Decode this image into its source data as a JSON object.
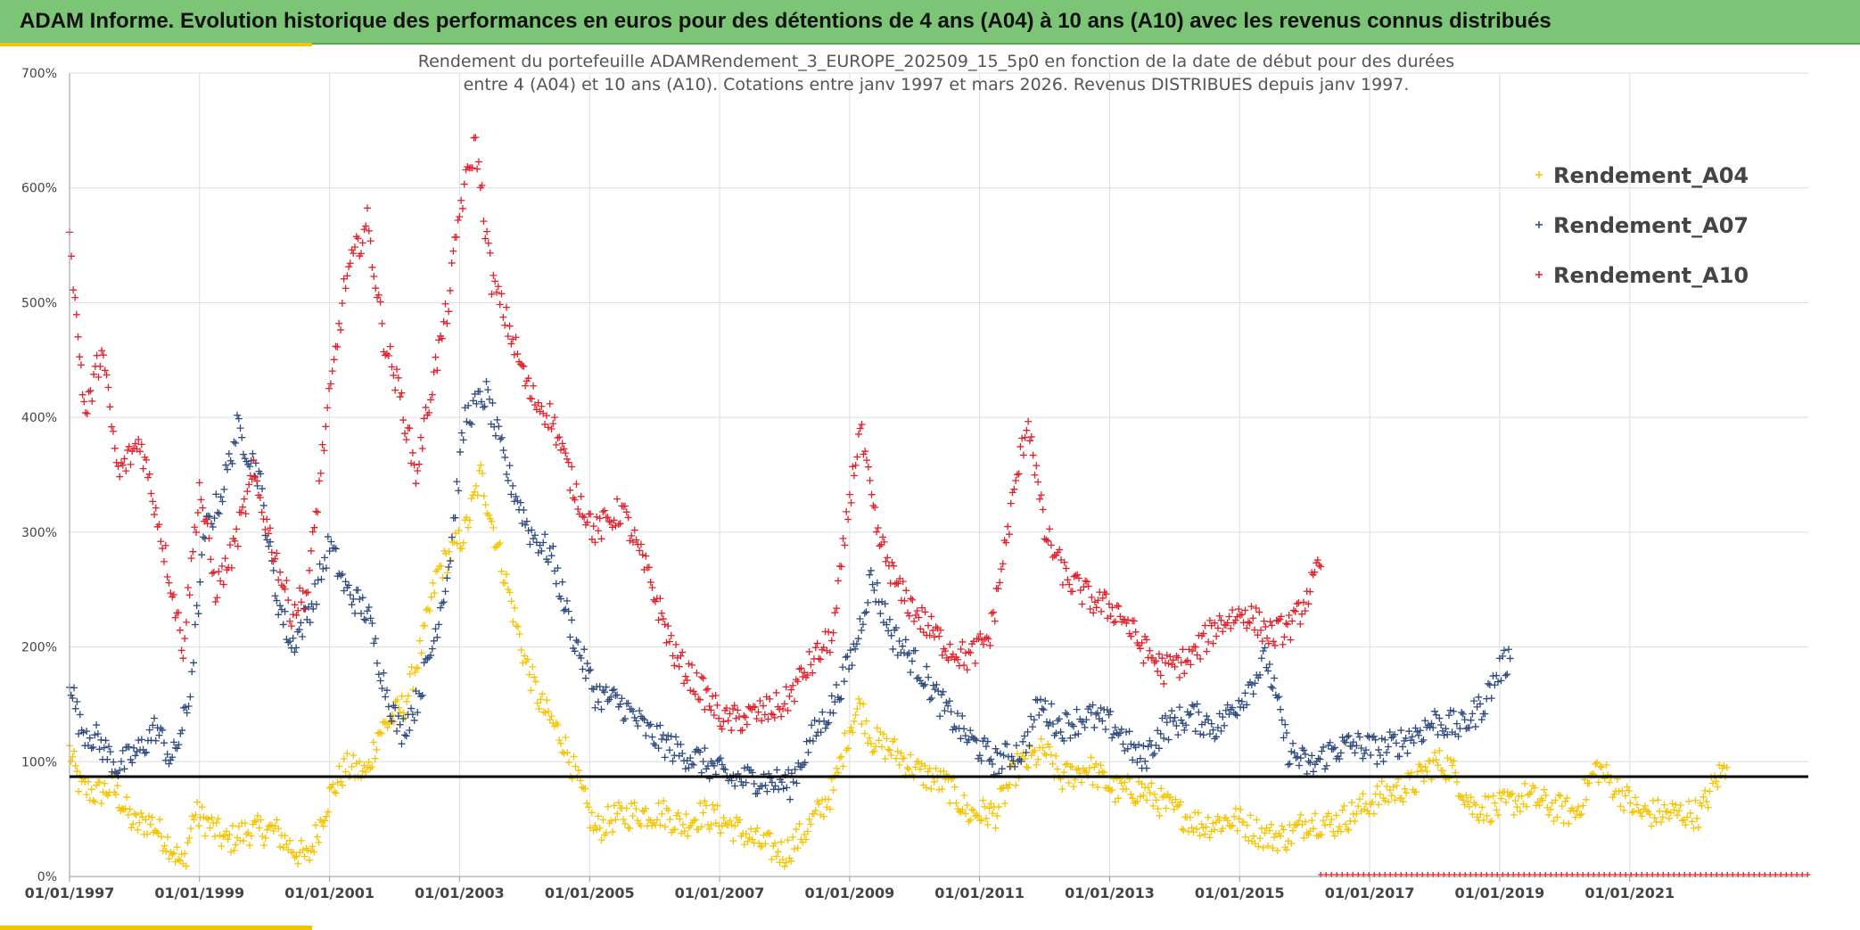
{
  "banner": {
    "title": "ADAM Informe. Evolution historique des performances en euros pour des détentions de 4 ans (A04) à 10 ans (A10) avec les revenus connus distribués"
  },
  "colors": {
    "banner": "#7cc576",
    "accent": "#f5c400",
    "a04": "#f5c400",
    "a07": "#2e4a7d",
    "a10": "#e0202a",
    "reference_line": "#000000"
  },
  "chart_data": {
    "type": "scatter",
    "title_lines": [
      "Rendement du portefeuille ADAMRendement_3_EUROPE_202509_15_5p0  en fonction de la date de début pour des durées",
      "entre 4 (A04) et 10 ans (A10). Cotations entre janv 1997 et mars 2026. Revenus DISTRIBUES depuis janv 1997."
    ],
    "x_type": "date",
    "xlim": [
      "1997-01-01",
      "2023-10-01"
    ],
    "x_ticks": [
      "01/01/1997",
      "01/01/1999",
      "01/01/2001",
      "01/01/2003",
      "01/01/2005",
      "01/01/2007",
      "01/01/2009",
      "01/01/2011",
      "01/01/2013",
      "01/01/2015",
      "01/01/2017",
      "01/01/2019",
      "01/01/2021"
    ],
    "ylim": [
      0,
      700
    ],
    "y_ticks": [
      "0%",
      "100%",
      "200%",
      "300%",
      "400%",
      "500%",
      "600%",
      "700%"
    ],
    "y_unit": "%",
    "grid": true,
    "legend_position": "top-right",
    "reference_line_y": 87,
    "marker": "+",
    "series": [
      {
        "name": "Rendement_A04",
        "color": "#f5c400",
        "points": [
          [
            "1997-01-01",
            110
          ],
          [
            "1997-03-01",
            78
          ],
          [
            "1997-06-01",
            72
          ],
          [
            "1997-09-01",
            78
          ],
          [
            "1998-01-01",
            45
          ],
          [
            "1998-04-01",
            48
          ],
          [
            "1998-08-01",
            25
          ],
          [
            "1998-10-01",
            8
          ],
          [
            "1998-12-01",
            55
          ],
          [
            "1999-03-01",
            45
          ],
          [
            "1999-06-01",
            30
          ],
          [
            "1999-10-01",
            40
          ],
          [
            "2000-03-01",
            40
          ],
          [
            "2000-06-01",
            25
          ],
          [
            "2000-09-01",
            15
          ],
          [
            "2001-01-01",
            70
          ],
          [
            "2001-04-01",
            95
          ],
          [
            "2001-08-01",
            90
          ],
          [
            "2001-10-01",
            125
          ],
          [
            "2002-03-01",
            150
          ],
          [
            "2002-06-01",
            200
          ],
          [
            "2002-09-01",
            265
          ],
          [
            "2002-12-01",
            285
          ],
          [
            "2003-02-01",
            300
          ],
          [
            "2003-05-01",
            350
          ],
          [
            "2003-07-01",
            310
          ],
          [
            "2003-10-01",
            250
          ],
          [
            "2004-01-01",
            190
          ],
          [
            "2004-04-01",
            150
          ],
          [
            "2004-08-01",
            120
          ],
          [
            "2004-11-01",
            80
          ],
          [
            "2005-02-01",
            40
          ],
          [
            "2005-05-01",
            50
          ],
          [
            "2005-09-01",
            55
          ],
          [
            "2006-03-01",
            55
          ],
          [
            "2006-06-01",
            45
          ],
          [
            "2006-10-01",
            55
          ],
          [
            "2007-03-01",
            45
          ],
          [
            "2007-08-01",
            30
          ],
          [
            "2008-01-01",
            20
          ],
          [
            "2008-05-01",
            40
          ],
          [
            "2008-10-01",
            75
          ],
          [
            "2009-01-01",
            130
          ],
          [
            "2009-03-01",
            150
          ],
          [
            "2009-05-01",
            120
          ],
          [
            "2009-09-01",
            110
          ],
          [
            "2010-02-01",
            90
          ],
          [
            "2010-07-01",
            80
          ],
          [
            "2010-11-01",
            55
          ],
          [
            "2011-04-01",
            55
          ],
          [
            "2011-08-01",
            95
          ],
          [
            "2011-10-01",
            100
          ],
          [
            "2012-01-01",
            110
          ],
          [
            "2012-04-01",
            85
          ],
          [
            "2012-09-01",
            95
          ],
          [
            "2013-02-01",
            75
          ],
          [
            "2013-07-01",
            75
          ],
          [
            "2013-12-01",
            60
          ],
          [
            "2014-06-01",
            45
          ],
          [
            "2014-12-01",
            50
          ],
          [
            "2015-06-01",
            35
          ],
          [
            "2015-10-01",
            35
          ],
          [
            "2016-02-01",
            50
          ],
          [
            "2016-06-01",
            45
          ],
          [
            "2016-10-01",
            55
          ],
          [
            "2017-03-01",
            70
          ],
          [
            "2017-09-01",
            80
          ],
          [
            "2018-01-01",
            100
          ],
          [
            "2018-04-01",
            95
          ],
          [
            "2018-08-01",
            60
          ],
          [
            "2019-01-01",
            60
          ],
          [
            "2019-06-01",
            70
          ],
          [
            "2019-11-01",
            60
          ],
          [
            "2020-03-01",
            55
          ],
          [
            "2020-07-01",
            95
          ],
          [
            "2020-11-01",
            75
          ],
          [
            "2021-03-01",
            55
          ],
          [
            "2021-08-01",
            55
          ],
          [
            "2022-02-01",
            55
          ],
          [
            "2022-05-01",
            85
          ],
          [
            "2022-07-01",
            95
          ]
        ]
      },
      {
        "name": "Rendement_A07",
        "color": "#2e4a7d",
        "points": [
          [
            "1997-01-01",
            175
          ],
          [
            "1997-03-01",
            130
          ],
          [
            "1997-06-01",
            120
          ],
          [
            "1997-10-01",
            95
          ],
          [
            "1998-02-01",
            110
          ],
          [
            "1998-05-01",
            130
          ],
          [
            "1998-08-01",
            100
          ],
          [
            "1998-11-01",
            150
          ],
          [
            "1999-02-01",
            300
          ],
          [
            "1999-05-01",
            330
          ],
          [
            "1999-08-01",
            390
          ],
          [
            "1999-12-01",
            350
          ],
          [
            "2000-03-01",
            250
          ],
          [
            "2000-06-01",
            200
          ],
          [
            "2000-10-01",
            240
          ],
          [
            "2001-01-01",
            290
          ],
          [
            "2001-04-01",
            250
          ],
          [
            "2001-08-01",
            230
          ],
          [
            "2001-11-01",
            170
          ],
          [
            "2002-02-01",
            125
          ],
          [
            "2002-05-01",
            150
          ],
          [
            "2002-08-01",
            200
          ],
          [
            "2002-11-01",
            270
          ],
          [
            "2003-02-01",
            400
          ],
          [
            "2003-06-01",
            420
          ],
          [
            "2003-10-01",
            350
          ],
          [
            "2004-02-01",
            300
          ],
          [
            "2004-06-01",
            280
          ],
          [
            "2004-10-01",
            210
          ],
          [
            "2005-02-01",
            160
          ],
          [
            "2005-07-01",
            150
          ],
          [
            "2005-12-01",
            125
          ],
          [
            "2006-05-01",
            110
          ],
          [
            "2006-10-01",
            100
          ],
          [
            "2007-03-01",
            85
          ],
          [
            "2007-08-01",
            85
          ],
          [
            "2008-02-01",
            80
          ],
          [
            "2008-06-01",
            120
          ],
          [
            "2008-10-01",
            150
          ],
          [
            "2009-02-01",
            200
          ],
          [
            "2009-05-01",
            260
          ],
          [
            "2009-09-01",
            210
          ],
          [
            "2010-02-01",
            180
          ],
          [
            "2010-06-01",
            150
          ],
          [
            "2010-11-01",
            120
          ],
          [
            "2011-04-01",
            100
          ],
          [
            "2011-09-01",
            110
          ],
          [
            "2011-12-01",
            150
          ],
          [
            "2012-04-01",
            130
          ],
          [
            "2012-09-01",
            140
          ],
          [
            "2013-02-01",
            130
          ],
          [
            "2013-07-01",
            100
          ],
          [
            "2013-11-01",
            130
          ],
          [
            "2014-04-01",
            140
          ],
          [
            "2014-09-01",
            130
          ],
          [
            "2015-02-01",
            160
          ],
          [
            "2015-06-01",
            190
          ],
          [
            "2015-10-01",
            110
          ],
          [
            "2016-02-01",
            95
          ],
          [
            "2016-06-01",
            110
          ],
          [
            "2016-10-01",
            115
          ],
          [
            "2017-03-01",
            110
          ],
          [
            "2017-08-01",
            120
          ],
          [
            "2018-01-01",
            135
          ],
          [
            "2018-06-01",
            130
          ],
          [
            "2018-10-01",
            150
          ],
          [
            "2019-01-01",
            180
          ],
          [
            "2019-03-01",
            190
          ]
        ]
      },
      {
        "name": "Rendement_A10",
        "color": "#e0202a",
        "points": [
          [
            "1997-01-01",
            570
          ],
          [
            "1997-02-01",
            500
          ],
          [
            "1997-04-01",
            400
          ],
          [
            "1997-07-01",
            460
          ],
          [
            "1997-10-01",
            350
          ],
          [
            "1998-02-01",
            380
          ],
          [
            "1998-05-01",
            320
          ],
          [
            "1998-08-01",
            250
          ],
          [
            "1998-10-01",
            200
          ],
          [
            "1999-01-01",
            340
          ],
          [
            "1999-04-01",
            250
          ],
          [
            "1999-07-01",
            280
          ],
          [
            "1999-11-01",
            350
          ],
          [
            "2000-03-01",
            280
          ],
          [
            "2000-06-01",
            230
          ],
          [
            "2000-09-01",
            250
          ],
          [
            "2000-12-01",
            380
          ],
          [
            "2001-04-01",
            520
          ],
          [
            "2001-08-01",
            570
          ],
          [
            "2001-11-01",
            470
          ],
          [
            "2002-02-01",
            420
          ],
          [
            "2002-05-01",
            350
          ],
          [
            "2002-08-01",
            430
          ],
          [
            "2002-11-01",
            500
          ],
          [
            "2003-01-01",
            580
          ],
          [
            "2003-04-01",
            640
          ],
          [
            "2003-07-01",
            520
          ],
          [
            "2003-10-01",
            480
          ],
          [
            "2004-02-01",
            420
          ],
          [
            "2004-06-01",
            400
          ],
          [
            "2004-10-01",
            340
          ],
          [
            "2005-02-01",
            300
          ],
          [
            "2005-07-01",
            320
          ],
          [
            "2005-12-01",
            260
          ],
          [
            "2006-05-01",
            190
          ],
          [
            "2006-10-01",
            160
          ],
          [
            "2007-02-01",
            135
          ],
          [
            "2007-07-01",
            140
          ],
          [
            "2008-01-01",
            150
          ],
          [
            "2008-05-01",
            180
          ],
          [
            "2008-10-01",
            210
          ],
          [
            "2009-01-01",
            330
          ],
          [
            "2009-03-01",
            390
          ],
          [
            "2009-06-01",
            300
          ],
          [
            "2009-10-01",
            250
          ],
          [
            "2010-03-01",
            220
          ],
          [
            "2010-07-01",
            200
          ],
          [
            "2010-11-01",
            190
          ],
          [
            "2011-03-01",
            210
          ],
          [
            "2011-08-01",
            350
          ],
          [
            "2011-10-01",
            400
          ],
          [
            "2012-01-01",
            300
          ],
          [
            "2012-05-01",
            260
          ],
          [
            "2012-10-01",
            240
          ],
          [
            "2013-03-01",
            230
          ],
          [
            "2013-07-01",
            200
          ],
          [
            "2013-11-01",
            180
          ],
          [
            "2014-04-01",
            190
          ],
          [
            "2014-09-01",
            220
          ],
          [
            "2015-02-01",
            230
          ],
          [
            "2015-07-01",
            210
          ],
          [
            "2015-11-01",
            220
          ],
          [
            "2016-02-01",
            250
          ],
          [
            "2016-04-01",
            270
          ]
        ]
      }
    ]
  }
}
